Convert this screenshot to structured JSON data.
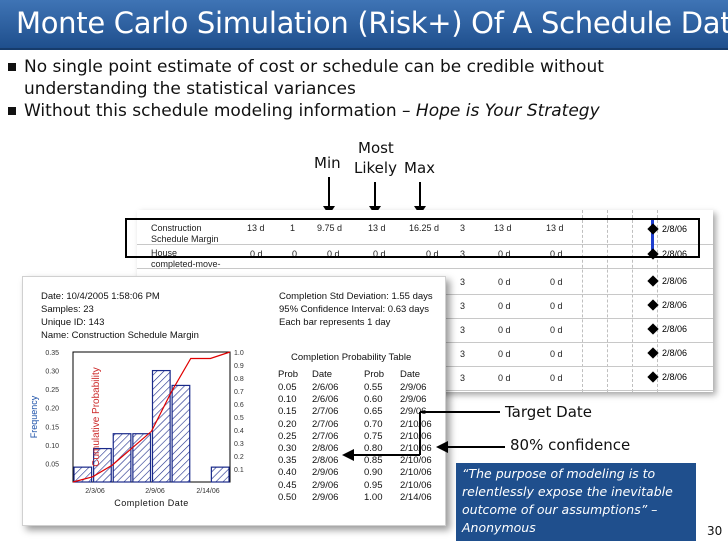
{
  "title": "Monte Carlo Simulation (Risk+) Of A Schedule Date",
  "bullets": [
    {
      "text": "No single point estimate of cost or schedule can be credible without understanding the statistical variances"
    },
    {
      "prefix": "Without this schedule modeling information – ",
      "emphasis": "Hope is Your Strategy"
    }
  ],
  "estimates": {
    "min": "Min",
    "most_likely_1": "Most",
    "most_likely_2": "Likely",
    "max": "Max"
  },
  "schedule_rows": [
    {
      "name1": "Construction",
      "name2": "Schedule Margin",
      "c1": "13 d",
      "c2": "1",
      "c3": "9.75 d",
      "c4": "13 d",
      "c5": "16.25 d",
      "c6": "3",
      "c7": "13 d",
      "c8": "13 d",
      "date": "2/8/06"
    },
    {
      "name1": "House",
      "name2": "completed-move-",
      "c1": "0 d",
      "c2": "0",
      "c3": "0 d",
      "c4": "0 d",
      "c5": "0 d",
      "c6": "3",
      "c7": "0 d",
      "c8": "0 d",
      "date": "2/8/06"
    },
    {
      "name1": "",
      "name2": "",
      "c1": "",
      "c2": "",
      "c3": "",
      "c4": "",
      "c5": "",
      "c6": "3",
      "c7": "0 d",
      "c8": "0 d",
      "date": "2/8/06"
    },
    {
      "name1": "",
      "name2": "",
      "c1": "",
      "c2": "",
      "c3": "",
      "c4": "",
      "c5": "",
      "c6": "3",
      "c7": "0 d",
      "c8": "0 d",
      "date": "2/8/06"
    },
    {
      "name1": "",
      "name2": "",
      "c1": "",
      "c2": "",
      "c3": "",
      "c4": "",
      "c5": "",
      "c6": "3",
      "c7": "0 d",
      "c8": "0 d",
      "date": "2/8/06"
    },
    {
      "name1": "",
      "name2": "",
      "c1": "",
      "c2": "",
      "c3": "",
      "c4": "",
      "c5": "",
      "c6": "3",
      "c7": "0 d",
      "c8": "0 d",
      "date": "2/8/06"
    },
    {
      "name1": "",
      "name2": "",
      "c1": "",
      "c2": "",
      "c3": "",
      "c4": "",
      "c5": "",
      "c6": "3",
      "c7": "0 d",
      "c8": "0 d",
      "date": "2/8/06"
    }
  ],
  "report": {
    "date": "Date: 10/4/2005 1:58:06 PM",
    "samples": "Samples: 23",
    "unique_id": "Unique ID: 143",
    "name": "Name: Construction Schedule Margin",
    "std_dev": "Completion Std Deviation: 1.55 days",
    "confidence": "95% Confidence Interval: 0.63 days",
    "bar_rep": "Each bar represents 1 day",
    "table_title": "Completion Probability  Table",
    "table_header": [
      "Prob",
      "Date",
      "Prob",
      "Date"
    ],
    "table_rows": [
      [
        "0.05",
        "2/6/06",
        "0.55",
        "2/9/06"
      ],
      [
        "0.10",
        "2/6/06",
        "0.60",
        "2/9/06"
      ],
      [
        "0.15",
        "2/7/06",
        "0.65",
        "2/9/06"
      ],
      [
        "0.20",
        "2/7/06",
        "0.70",
        "2/10/06"
      ],
      [
        "0.25",
        "2/7/06",
        "0.75",
        "2/10/06"
      ],
      [
        "0.30",
        "2/8/06",
        "0.80",
        "2/10/06"
      ],
      [
        "0.35",
        "2/8/06",
        "0.85",
        "2/10/06"
      ],
      [
        "0.40",
        "2/9/06",
        "0.90",
        "2/10/06"
      ],
      [
        "0.45",
        "2/9/06",
        "0.95",
        "2/10/06"
      ],
      [
        "0.50",
        "2/9/06",
        "1.00",
        "2/14/06"
      ]
    ]
  },
  "chart_data": {
    "type": "bar",
    "xlabel": "Completion Date",
    "ylabel": "Frequency",
    "y2label": "Cumulative Probability",
    "ylim": [
      0,
      0.35
    ],
    "y2lim": [
      0,
      1.0
    ],
    "yticks": [
      "0.05",
      "0.10",
      "0.15",
      "0.20",
      "0.25",
      "0.30",
      "0.35"
    ],
    "y2ticks": [
      "0.1",
      "0.2",
      "0.3",
      "0.4",
      "0.5",
      "0.6",
      "0.7",
      "0.8",
      "0.9",
      "1.0"
    ],
    "xticks": [
      "2/3/06",
      "2/9/06",
      "2/14/06"
    ],
    "values": [
      0.04,
      0.09,
      0.13,
      0.13,
      0.3,
      0.26,
      0,
      0.04
    ],
    "cumulative": [
      0.04,
      0.13,
      0.26,
      0.39,
      0.69,
      0.95,
      0.95,
      1.0
    ]
  },
  "callouts": {
    "target_date": "Target Date",
    "confidence_80": "80% confidence"
  },
  "quote": "“The purpose of modeling is to relentlessly expose the inevitable outcome of our assumptions” – Anonymous",
  "page_number": "30",
  "colors": {
    "title_bar": "#1f4f8d",
    "bar_hatch": "#1a2a8a",
    "cumulative_line": "#e00000",
    "milestone_blue": "#1f3fd0"
  }
}
